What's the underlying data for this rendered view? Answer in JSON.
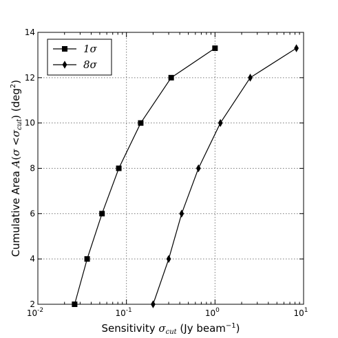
{
  "chart_data": {
    "type": "line",
    "x_scale": "log",
    "xlim": [
      0.01,
      10
    ],
    "ylim": [
      2,
      14
    ],
    "x_ticks": [
      {
        "base": "10",
        "exp": "-2",
        "value": 0.01
      },
      {
        "base": "10",
        "exp": "-1",
        "value": 0.1
      },
      {
        "base": "10",
        "exp": "0",
        "value": 1
      },
      {
        "base": "10",
        "exp": "1",
        "value": 10
      }
    ],
    "y_ticks": [
      2,
      4,
      6,
      8,
      10,
      12,
      14
    ],
    "y_tick_labels": [
      "2",
      "4",
      "6",
      "8",
      "10",
      "12",
      "14"
    ],
    "grid": true,
    "legend": "top-left",
    "xlabel": "Sensitivity σcut (Jy beam−1)",
    "ylabel": "Cumulative Area A(σ <σcut) (deg2)",
    "series": [
      {
        "name": "1σ",
        "marker": "square",
        "x": [
          0.026,
          0.036,
          0.053,
          0.082,
          0.145,
          0.32,
          1.0
        ],
        "y": [
          2,
          4,
          6,
          8,
          10,
          12,
          13.3
        ]
      },
      {
        "name": "8σ",
        "marker": "diamond",
        "x": [
          0.2,
          0.3,
          0.42,
          0.65,
          1.15,
          2.5,
          8.3
        ],
        "y": [
          2,
          4,
          6,
          8,
          10,
          12,
          13.3
        ]
      }
    ]
  }
}
